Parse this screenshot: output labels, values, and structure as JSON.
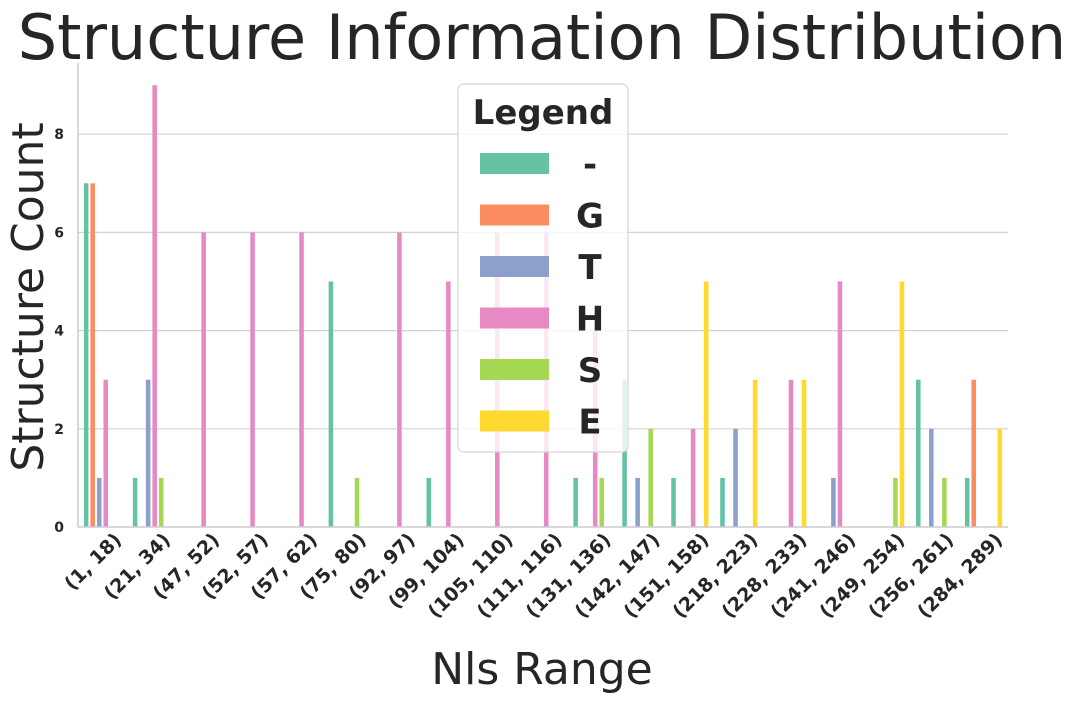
{
  "chart_data": {
    "type": "bar",
    "title": "Structure Information Distribution",
    "xlabel": "Nls Range",
    "ylabel": "Structure Count",
    "ylim": [
      0,
      9.45
    ],
    "yticks": [
      0,
      2,
      4,
      6,
      8
    ],
    "grid": "horizontal",
    "legend": {
      "title": "Legend",
      "placement": "top-center"
    },
    "categories": [
      "(1, 18)",
      "(21, 34)",
      "(47, 52)",
      "(52, 57)",
      "(57, 62)",
      "(75, 80)",
      "(92, 97)",
      "(99, 104)",
      "(105, 110)",
      "(111, 116)",
      "(131, 136)",
      "(142, 147)",
      "(151, 158)",
      "(218, 223)",
      "(228, 233)",
      "(241, 246)",
      "(249, 254)",
      "(256, 261)",
      "(284, 289)"
    ],
    "series": [
      {
        "name": "-",
        "color": "#66c2a5",
        "values": [
          7,
          1,
          0,
          0,
          0,
          5,
          0,
          1,
          0,
          0,
          1,
          3,
          1,
          1,
          0,
          0,
          0,
          3,
          1
        ]
      },
      {
        "name": "G",
        "color": "#fc8d62",
        "values": [
          7,
          0,
          0,
          0,
          0,
          0,
          0,
          0,
          0,
          0,
          0,
          0,
          0,
          0,
          0,
          0,
          0,
          0,
          3
        ]
      },
      {
        "name": "T",
        "color": "#8da0cb",
        "values": [
          1,
          3,
          0,
          0,
          0,
          0,
          0,
          0,
          0,
          0,
          0,
          1,
          0,
          2,
          0,
          1,
          0,
          2,
          0
        ]
      },
      {
        "name": "H",
        "color": "#e78ac3",
        "values": [
          3,
          9,
          6,
          6,
          6,
          0,
          6,
          5,
          6,
          6,
          4,
          0,
          2,
          0,
          3,
          5,
          0,
          0,
          0
        ]
      },
      {
        "name": "S",
        "color": "#a6d854",
        "values": [
          0,
          1,
          0,
          0,
          0,
          1,
          0,
          0,
          0,
          0,
          1,
          2,
          0,
          0,
          0,
          0,
          1,
          1,
          0
        ]
      },
      {
        "name": "E",
        "color": "#ffd92f",
        "values": [
          0,
          0,
          0,
          0,
          0,
          0,
          0,
          0,
          0,
          0,
          0,
          0,
          5,
          3,
          3,
          0,
          5,
          0,
          2
        ]
      }
    ]
  }
}
